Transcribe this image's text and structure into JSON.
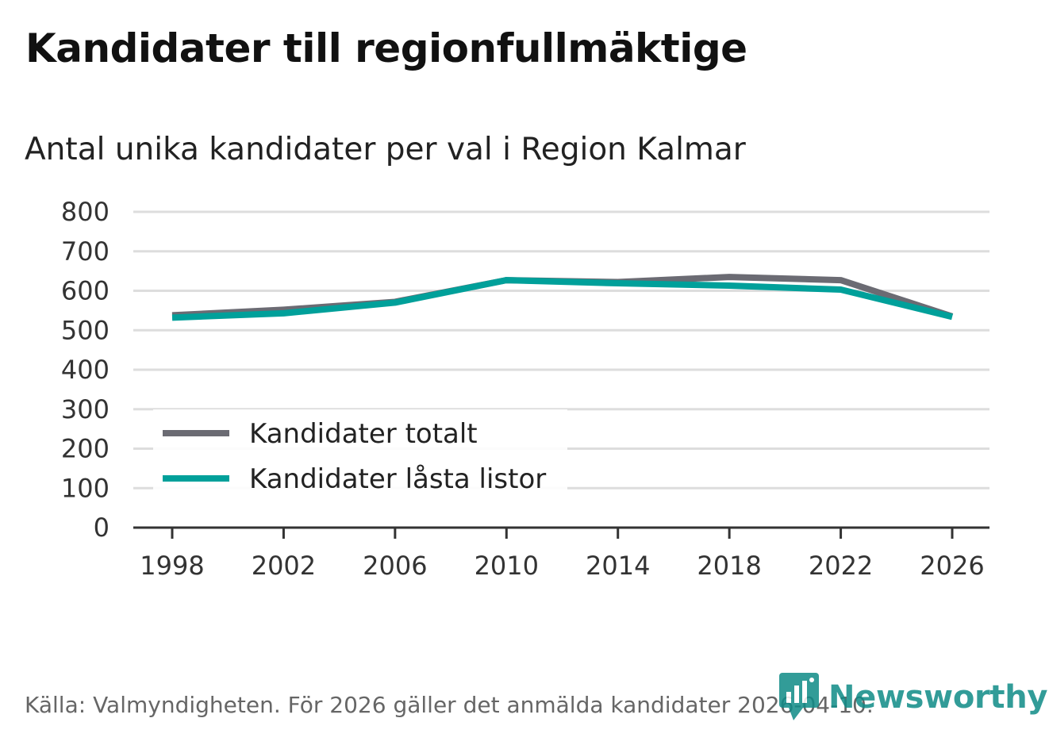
{
  "header": {
    "title": "Kandidater till regionfullmäktige",
    "subtitle": "Antal unika kandidater per val i Region Kalmar"
  },
  "footer": {
    "source": "Källa: Valmyndigheten. För 2026 gäller det anmälda kandidater 2026-04-10.",
    "brand": "Newsworthy"
  },
  "colors": {
    "series_total": "#6b6b73",
    "series_locked": "#00a09a",
    "grid": "#dddddd",
    "axis": "#333333",
    "brand": "#0f8b87"
  },
  "chart_data": {
    "type": "line",
    "title": "Antal unika kandidater per val i Region Kalmar",
    "xlabel": "",
    "ylabel": "",
    "categories": [
      "1998",
      "2002",
      "2006",
      "2010",
      "2014",
      "2018",
      "2022",
      "2026"
    ],
    "yticks": [
      0,
      100,
      200,
      300,
      400,
      500,
      600,
      700,
      800
    ],
    "ylim": [
      0,
      800
    ],
    "grid": true,
    "legend_position": "bottom-left",
    "series": [
      {
        "name": "Kandidater totalt",
        "color": "#6b6b73",
        "values": [
          538,
          552,
          572,
          627,
          622,
          635,
          627,
          535
        ]
      },
      {
        "name": "Kandidater låsta listor",
        "color": "#00a09a",
        "values": [
          532,
          543,
          570,
          627,
          619,
          613,
          603,
          534
        ]
      }
    ]
  }
}
